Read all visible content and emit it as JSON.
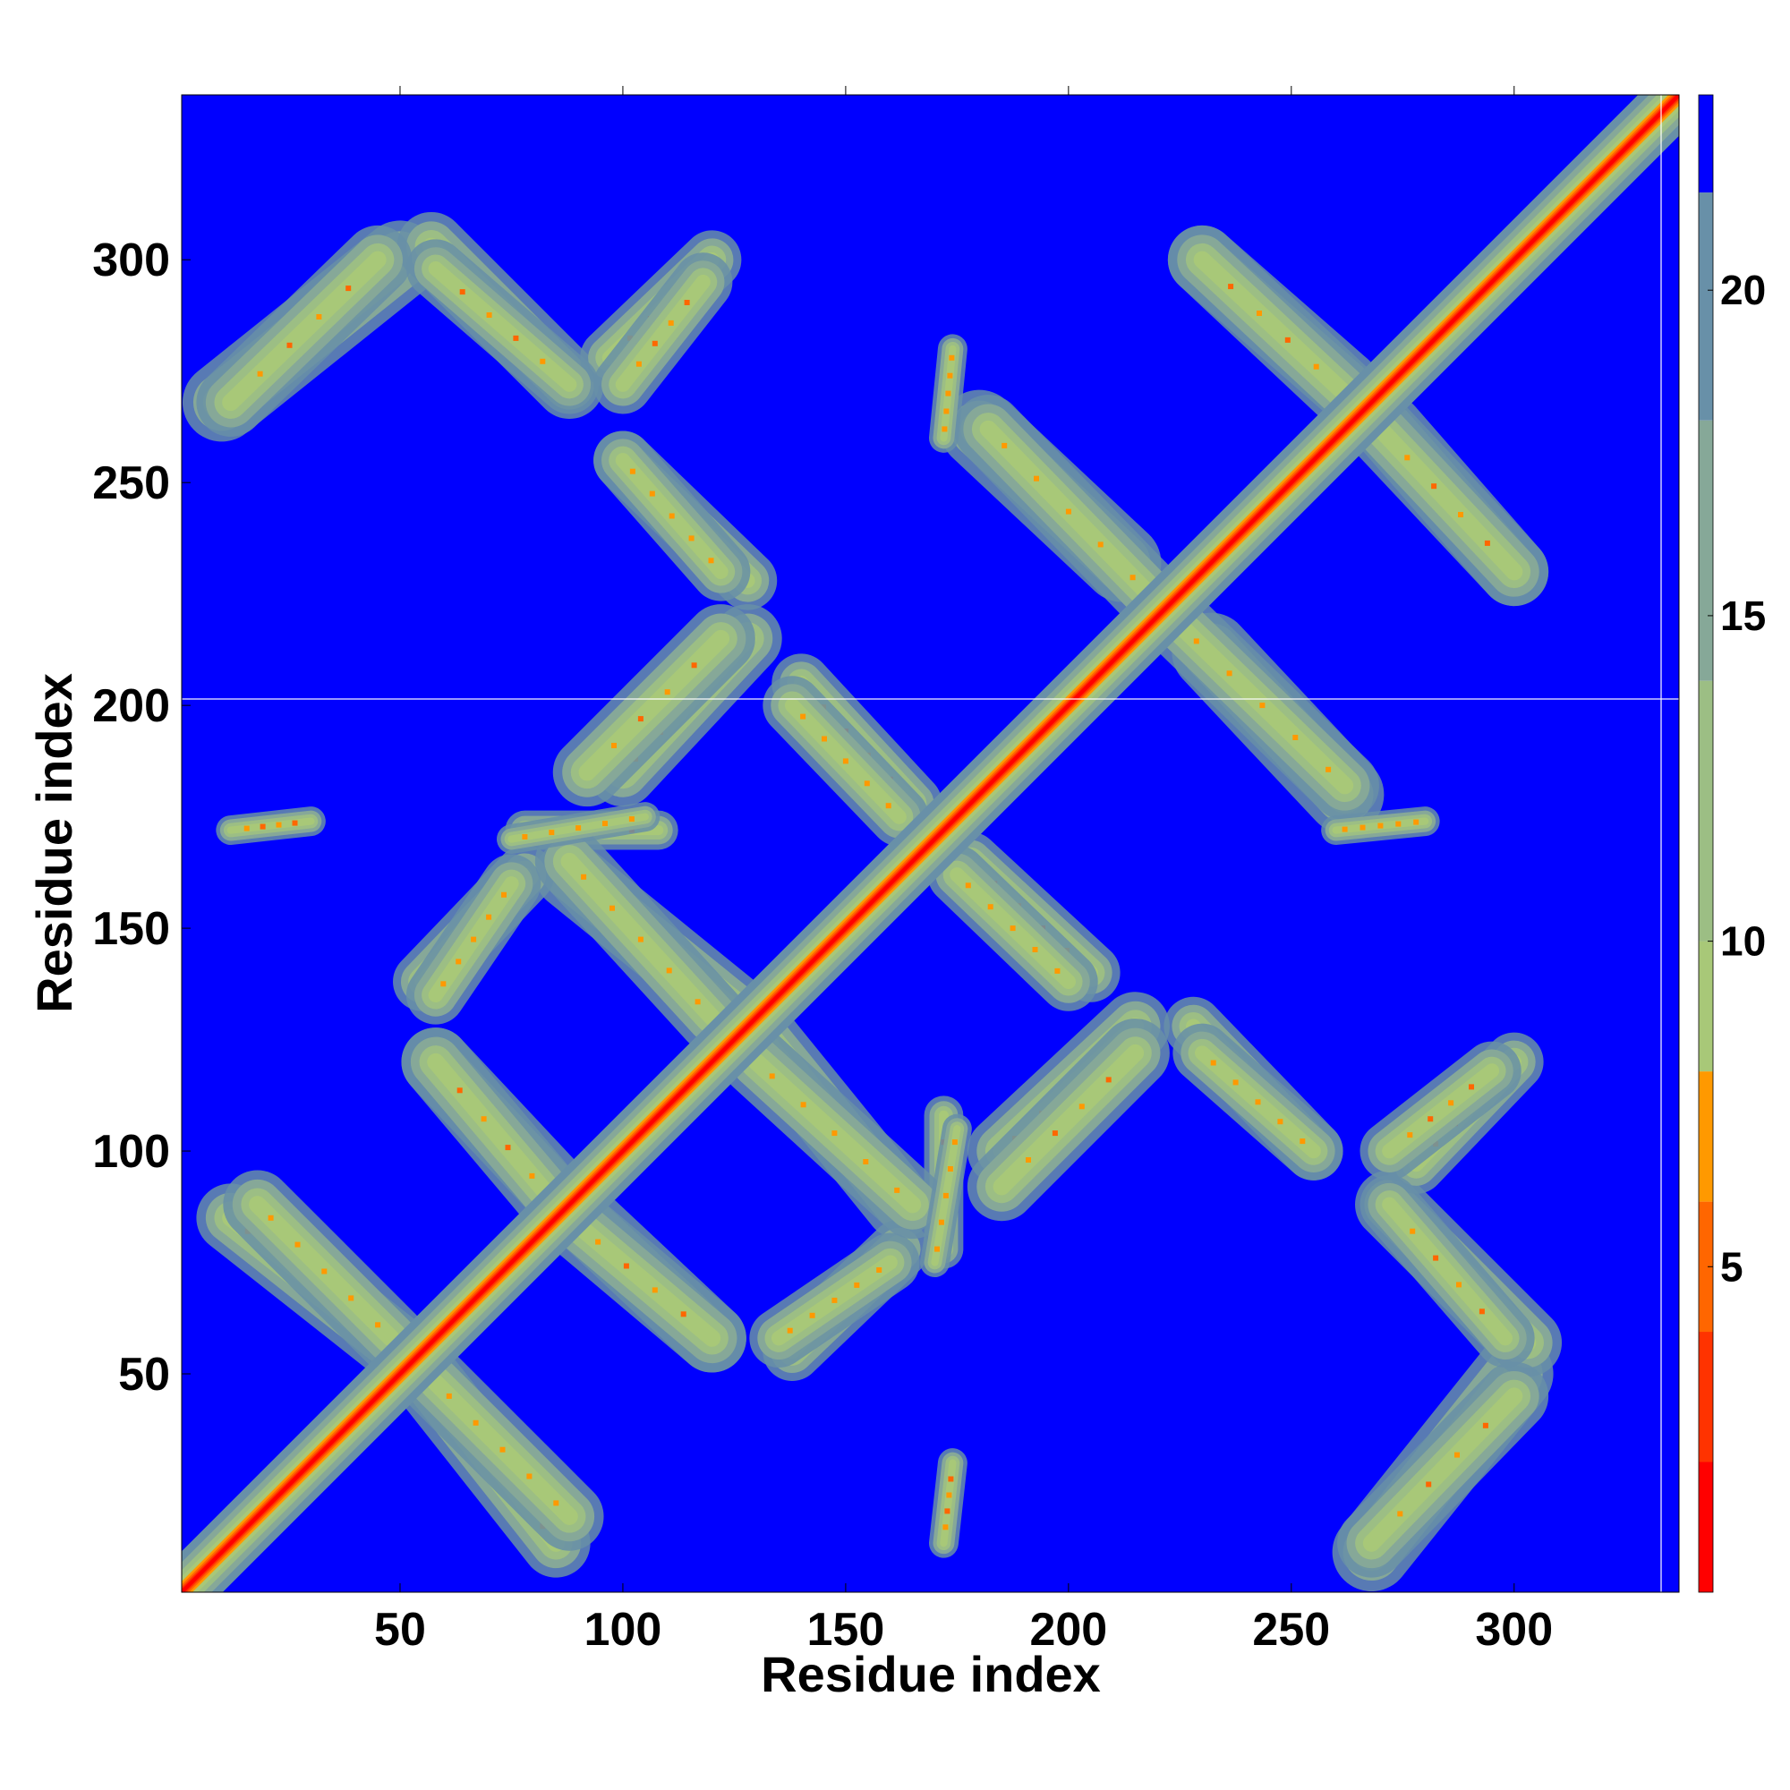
{
  "chart_data": {
    "type": "heatmap",
    "description_of_values": "pairwise residue distance map, symmetric about the diagonal",
    "xlabel": "Residue index",
    "ylabel": "Residue index",
    "xlim": [
      1,
      337
    ],
    "ylim": [
      1,
      337
    ],
    "x_ticks": [
      50,
      100,
      150,
      200,
      250,
      300
    ],
    "y_ticks": [
      50,
      100,
      150,
      200,
      250,
      300
    ],
    "colorbar": {
      "range": [
        0,
        23
      ],
      "ticks": [
        5,
        10,
        15,
        20
      ],
      "colors": [
        {
          "from": 0,
          "to": 2,
          "color": "#ff0000"
        },
        {
          "from": 2,
          "to": 4,
          "color": "#ff3300"
        },
        {
          "from": 4,
          "to": 6,
          "color": "#ff6600"
        },
        {
          "from": 6,
          "to": 8,
          "color": "#ff9900"
        },
        {
          "from": 8,
          "to": 10,
          "color": "#a8c878"
        },
        {
          "from": 10,
          "to": 14,
          "color": "#9cbe84"
        },
        {
          "from": 14,
          "to": 18,
          "color": "#86a898"
        },
        {
          "from": 18,
          "to": 21.5,
          "color": "#6890a8"
        },
        {
          "from": 21.5,
          "to": 23,
          "color": "#0000ff"
        }
      ]
    },
    "background_color": "#0000ff",
    "diagonal_band": {
      "from": 1,
      "to": 337
    },
    "contact_regions": [
      {
        "name": "a1",
        "x1": 10,
        "y1": 268,
        "x2": 50,
        "y2": 300,
        "width": 8
      },
      {
        "name": "a2",
        "x1": 57,
        "y1": 303,
        "x2": 88,
        "y2": 272,
        "width": 7
      },
      {
        "name": "a3",
        "x1": 97,
        "y1": 278,
        "x2": 120,
        "y2": 300,
        "width": 6
      },
      {
        "name": "a4",
        "x1": 230,
        "y1": 300,
        "x2": 262,
        "y2": 272,
        "width": 7
      },
      {
        "name": "a5",
        "x1": 270,
        "y1": 262,
        "x2": 300,
        "y2": 230,
        "width": 7
      },
      {
        "name": "a6",
        "x1": 180,
        "y1": 262,
        "x2": 212,
        "y2": 232,
        "width": 8
      },
      {
        "name": "a7",
        "x1": 100,
        "y1": 255,
        "x2": 128,
        "y2": 228,
        "width": 6
      },
      {
        "name": "a8",
        "x1": 100,
        "y1": 185,
        "x2": 128,
        "y2": 215,
        "width": 7
      },
      {
        "name": "a9",
        "x1": 140,
        "y1": 205,
        "x2": 165,
        "y2": 178,
        "width": 6
      },
      {
        "name": "a10",
        "x1": 225,
        "y1": 218,
        "x2": 262,
        "y2": 182,
        "width": 7
      },
      {
        "name": "a11",
        "x1": 78,
        "y1": 172,
        "x2": 108,
        "y2": 172,
        "width": 4
      },
      {
        "name": "a12",
        "x1": 88,
        "y1": 162,
        "x2": 125,
        "y2": 132,
        "width": 7
      },
      {
        "name": "a13",
        "x1": 55,
        "y1": 138,
        "x2": 78,
        "y2": 162,
        "width": 6
      },
      {
        "name": "a14",
        "x1": 175,
        "y1": 162,
        "x2": 200,
        "y2": 138,
        "width": 6
      },
      {
        "name": "a15",
        "x1": 58,
        "y1": 120,
        "x2": 88,
        "y2": 88,
        "width": 7
      },
      {
        "name": "a16",
        "x1": 130,
        "y1": 120,
        "x2": 165,
        "y2": 88,
        "width": 7
      },
      {
        "name": "a17",
        "x1": 185,
        "y1": 92,
        "x2": 215,
        "y2": 122,
        "width": 7
      },
      {
        "name": "a18",
        "x1": 230,
        "y1": 122,
        "x2": 255,
        "y2": 100,
        "width": 6
      },
      {
        "name": "a19",
        "x1": 272,
        "y1": 100,
        "x2": 295,
        "y2": 118,
        "width": 6
      },
      {
        "name": "a20",
        "x1": 12,
        "y1": 85,
        "x2": 50,
        "y2": 55,
        "width": 7
      },
      {
        "name": "a21",
        "x1": 88,
        "y1": 85,
        "x2": 120,
        "y2": 58,
        "width": 7
      },
      {
        "name": "a22",
        "x1": 135,
        "y1": 58,
        "x2": 160,
        "y2": 75,
        "width": 6
      },
      {
        "name": "a23",
        "x1": 272,
        "y1": 88,
        "x2": 298,
        "y2": 58,
        "width": 6
      },
      {
        "name": "a24",
        "x1": 58,
        "y1": 48,
        "x2": 88,
        "y2": 18,
        "width": 7
      },
      {
        "name": "a25",
        "x1": 268,
        "y1": 12,
        "x2": 300,
        "y2": 45,
        "width": 7
      },
      {
        "name": "a26",
        "x1": 170,
        "y1": 75,
        "x2": 175,
        "y2": 105,
        "width": 3
      },
      {
        "name": "a27",
        "x1": 172,
        "y1": 12,
        "x2": 174,
        "y2": 30,
        "width": 3
      },
      {
        "name": "a28",
        "x1": 172,
        "y1": 260,
        "x2": 174,
        "y2": 280,
        "width": 3
      }
    ]
  }
}
